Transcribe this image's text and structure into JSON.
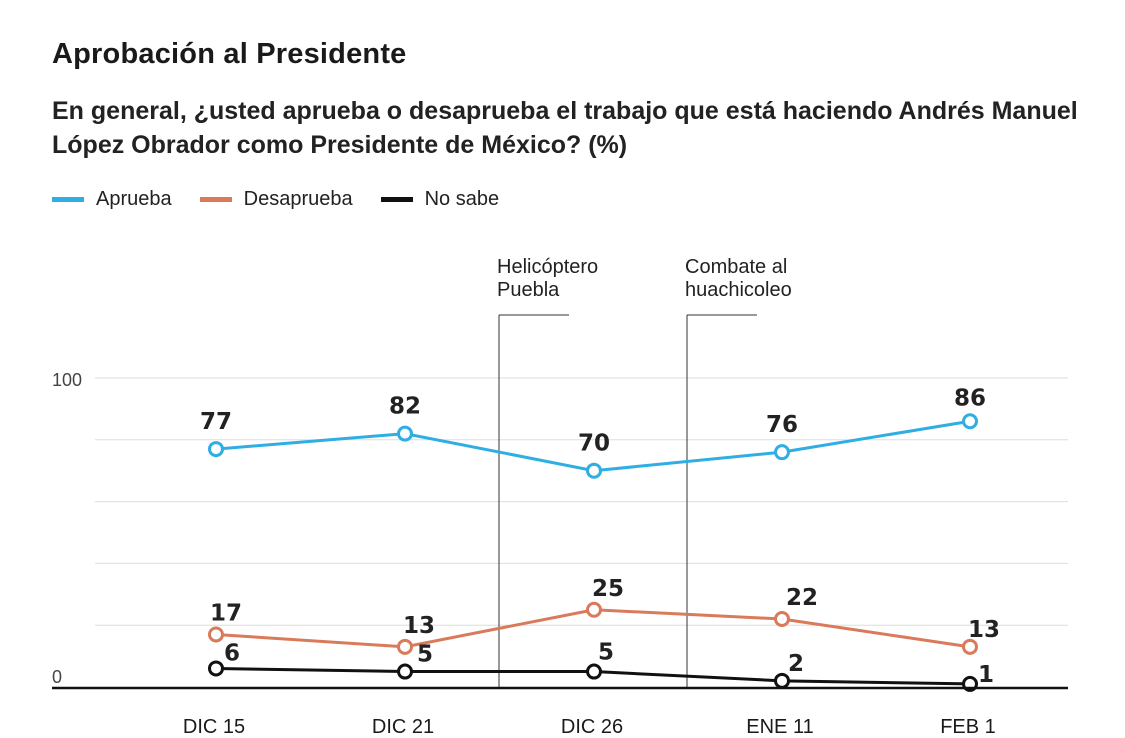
{
  "title": "Aprobación al Presidente",
  "subtitle": "En general, ¿usted aprueba o desaprueba el trabajo que está haciendo Andrés Manuel López Obrador como Presidente de México? (%)",
  "legend": [
    {
      "name": "Aprueba",
      "color": "#2eaee3"
    },
    {
      "name": "Desaprueba",
      "color": "#d97a5b"
    },
    {
      "name": "No sabe",
      "color": "#111111"
    }
  ],
  "chart_data": {
    "type": "line",
    "title": "Aprobación al Presidente",
    "categories": [
      "DIC 15",
      "DIC 21",
      "DIC 26",
      "ENE 11",
      "FEB 1"
    ],
    "series": [
      {
        "name": "Aprueba",
        "color": "#2eaee3",
        "values": [
          77,
          82,
          70,
          76,
          86
        ]
      },
      {
        "name": "Desaprueba",
        "color": "#d97a5b",
        "values": [
          17,
          13,
          25,
          22,
          13
        ]
      },
      {
        "name": "No sabe",
        "color": "#111111",
        "values": [
          6,
          5,
          5,
          2,
          1
        ]
      }
    ],
    "ylim": [
      0,
      100
    ],
    "yticks": [
      "0",
      "100"
    ],
    "grid": true,
    "legend_position": "top-left",
    "annotations": [
      {
        "lines": [
          "Helicóptero",
          "Puebla"
        ],
        "between": [
          "DIC 21",
          "DIC 26"
        ]
      },
      {
        "lines": [
          "Combate al",
          "huachicoleo"
        ],
        "between": [
          "DIC 26",
          "ENE 11"
        ]
      }
    ]
  }
}
